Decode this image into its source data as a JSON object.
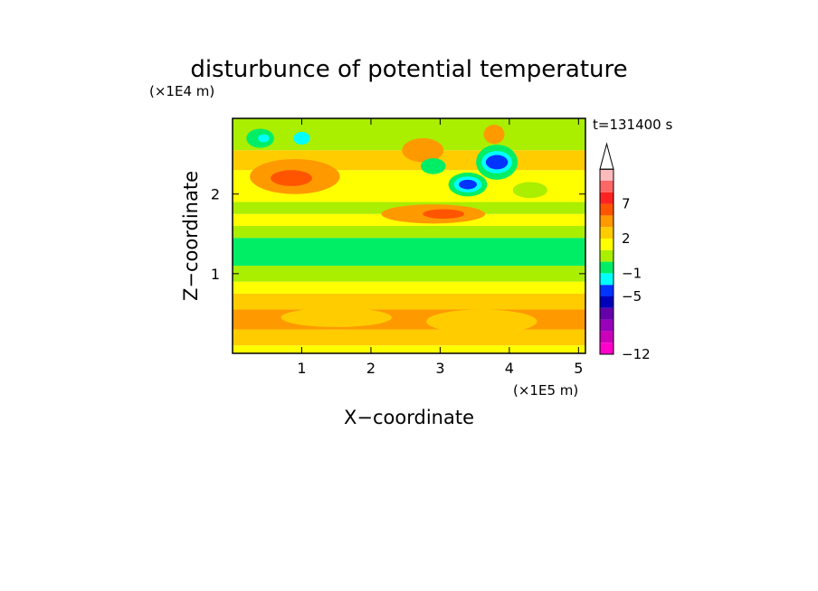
{
  "chart_data": {
    "type": "heatmap",
    "title": "disturbunce of potential temperature",
    "xlabel": "X−coordinate",
    "ylabel": "Z−coordinate",
    "x_unit": "(×1E5 m)",
    "y_unit": "(×1E4 m)",
    "time_label": "t=131400 s",
    "xlim": [
      0,
      5.1
    ],
    "ylim": [
      0,
      2.95
    ],
    "x_ticks": [
      1,
      2,
      3,
      4,
      5
    ],
    "y_ticks": [
      1,
      2
    ],
    "colorbar": {
      "levels": [
        -12,
        -11,
        -10,
        -9,
        -7,
        -5,
        -3,
        -1,
        0,
        1,
        2,
        3,
        5,
        7,
        9,
        11
      ],
      "labeled_ticks": [
        {
          "level": -12,
          "label": "−12"
        },
        {
          "level": -5,
          "label": "−5"
        },
        {
          "level": -1,
          "label": "−1"
        },
        {
          "level": 2,
          "label": "2"
        },
        {
          "level": 7,
          "label": "7"
        }
      ],
      "colors": [
        "#ff00cc",
        "#cc00bb",
        "#9900bb",
        "#6600aa",
        "#0000bb",
        "#0033ff",
        "#00ffff",
        "#00ee66",
        "#aaee00",
        "#ffff00",
        "#ffcc00",
        "#ff9900",
        "#ff5500",
        "#ff2222",
        "#ff6666",
        "#ffbbbb"
      ],
      "extend": "max"
    },
    "field": {
      "bands": [
        {
          "z": [
            0.0,
            0.1
          ],
          "level": 1
        },
        {
          "z": [
            0.1,
            0.3
          ],
          "level": 2
        },
        {
          "z": [
            0.3,
            0.55
          ],
          "level": 3
        },
        {
          "z": [
            0.55,
            0.75
          ],
          "level": 2
        },
        {
          "z": [
            0.75,
            0.9
          ],
          "level": 1
        },
        {
          "z": [
            0.9,
            1.1
          ],
          "level": 0
        },
        {
          "z": [
            1.1,
            1.45
          ],
          "level": -1
        },
        {
          "z": [
            1.45,
            1.6
          ],
          "level": 0
        },
        {
          "z": [
            1.6,
            1.75
          ],
          "level": 1
        },
        {
          "z": [
            1.75,
            1.9
          ],
          "level": 0
        },
        {
          "z": [
            1.9,
            2.3
          ],
          "level": 1
        },
        {
          "z": [
            2.3,
            2.55
          ],
          "level": 2
        },
        {
          "z": [
            2.55,
            2.95
          ],
          "level": 0
        }
      ],
      "features": [
        {
          "x": 0.9,
          "z": 2.22,
          "rx": 0.65,
          "rz": 0.22,
          "level": 3
        },
        {
          "x": 0.85,
          "z": 2.2,
          "rx": 0.3,
          "rz": 0.1,
          "level": 5
        },
        {
          "x": 2.9,
          "z": 1.75,
          "rx": 0.75,
          "rz": 0.12,
          "level": 3
        },
        {
          "x": 3.05,
          "z": 1.75,
          "rx": 0.3,
          "rz": 0.06,
          "level": 5
        },
        {
          "x": 2.75,
          "z": 2.55,
          "rx": 0.3,
          "rz": 0.15,
          "level": 3
        },
        {
          "x": 3.82,
          "z": 2.4,
          "rx": 0.3,
          "rz": 0.22,
          "level": -1
        },
        {
          "x": 3.82,
          "z": 2.4,
          "rx": 0.22,
          "rz": 0.14,
          "level": -3
        },
        {
          "x": 3.82,
          "z": 2.4,
          "rx": 0.16,
          "rz": 0.09,
          "level": -5
        },
        {
          "x": 3.4,
          "z": 2.12,
          "rx": 0.28,
          "rz": 0.15,
          "level": -1
        },
        {
          "x": 3.4,
          "z": 2.12,
          "rx": 0.2,
          "rz": 0.1,
          "level": -3
        },
        {
          "x": 3.4,
          "z": 2.12,
          "rx": 0.13,
          "rz": 0.06,
          "level": -5
        },
        {
          "x": 2.9,
          "z": 2.35,
          "rx": 0.18,
          "rz": 0.1,
          "level": -1
        },
        {
          "x": 0.4,
          "z": 2.7,
          "rx": 0.2,
          "rz": 0.12,
          "level": -1
        },
        {
          "x": 0.45,
          "z": 2.7,
          "rx": 0.08,
          "rz": 0.05,
          "level": -3
        },
        {
          "x": 1.0,
          "z": 2.7,
          "rx": 0.12,
          "rz": 0.08,
          "level": -3
        },
        {
          "x": 3.78,
          "z": 2.75,
          "rx": 0.15,
          "rz": 0.12,
          "level": 3
        },
        {
          "x": 4.3,
          "z": 2.05,
          "rx": 0.25,
          "rz": 0.1,
          "level": 0
        },
        {
          "x": 1.5,
          "z": 0.45,
          "rx": 0.8,
          "rz": 0.12,
          "level": 2
        },
        {
          "x": 3.6,
          "z": 0.4,
          "rx": 0.8,
          "rz": 0.15,
          "level": 2
        }
      ]
    }
  }
}
